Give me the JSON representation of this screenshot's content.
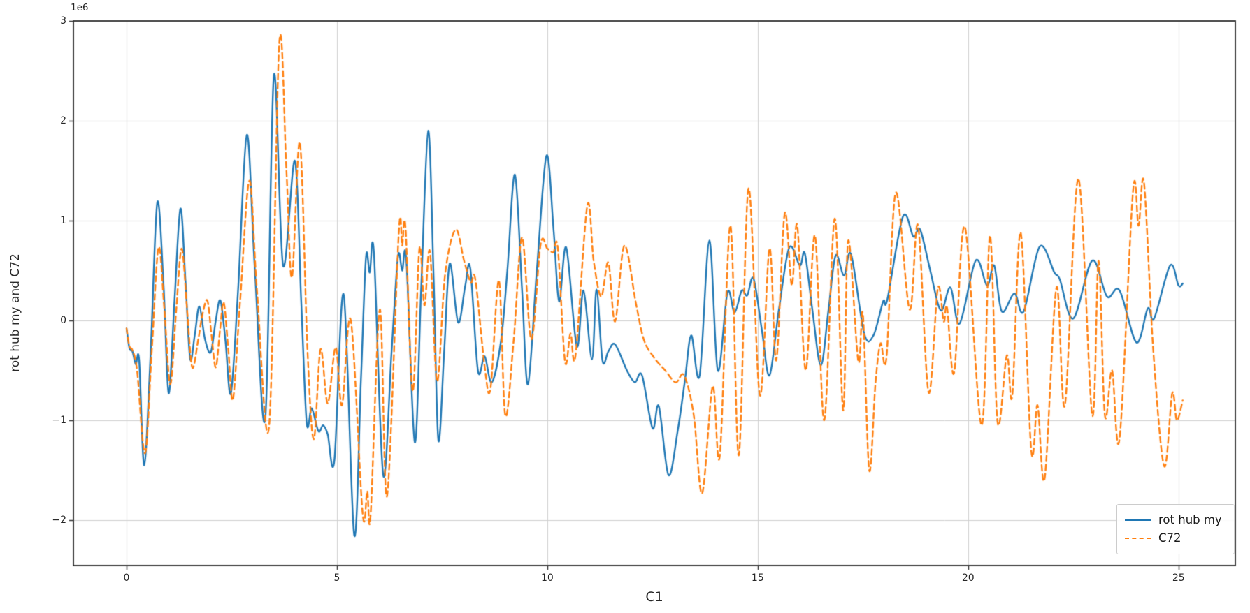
{
  "figure": {
    "y_offset_text": "1e6",
    "background": "#ffffff",
    "grid_color": "#d0d0d0",
    "frame_color": "#2b2b2b",
    "tick_color": "#262626"
  },
  "chart_data": {
    "type": "line",
    "title": "",
    "xlabel": "C1",
    "ylabel": "rot hub my and C72",
    "y_unit_multiplier": 1000000,
    "y_offset_text": "1e6",
    "grid": true,
    "legend_position": "lower right",
    "xlim": [
      -1.263,
      26.35
    ],
    "ylim": [
      -2.455,
      3.0
    ],
    "x_ticks": [
      0,
      5,
      10,
      15,
      20,
      25
    ],
    "x_tick_labels": [
      "0",
      "5",
      "10",
      "15",
      "20",
      "25"
    ],
    "y_ticks": [
      3,
      2,
      1,
      0,
      -1,
      -2
    ],
    "y_tick_labels": [
      "3",
      "2",
      "1",
      "0",
      "−1",
      "−2"
    ],
    "series": [
      {
        "name": "rot hub my",
        "color": "#1f77b4",
        "dash": "solid",
        "points": [
          [
            0.0,
            -0.08
          ],
          [
            0.07,
            -0.28
          ],
          [
            0.14,
            -0.31
          ],
          [
            0.22,
            -0.44
          ],
          [
            0.3,
            -0.4
          ],
          [
            0.42,
            -1.45
          ],
          [
            0.57,
            -0.35
          ],
          [
            0.73,
            1.18
          ],
          [
            0.88,
            0.35
          ],
          [
            1.0,
            -0.73
          ],
          [
            1.14,
            0.2
          ],
          [
            1.28,
            1.12
          ],
          [
            1.4,
            0.4
          ],
          [
            1.51,
            -0.38
          ],
          [
            1.62,
            -0.15
          ],
          [
            1.73,
            0.14
          ],
          [
            1.86,
            -0.18
          ],
          [
            2.0,
            -0.32
          ],
          [
            2.12,
            0.0
          ],
          [
            2.23,
            0.2
          ],
          [
            2.35,
            -0.2
          ],
          [
            2.48,
            -0.73
          ],
          [
            2.65,
            0.3
          ],
          [
            2.86,
            1.86
          ],
          [
            3.05,
            0.5
          ],
          [
            3.3,
            -0.97
          ],
          [
            3.5,
            2.45
          ],
          [
            3.72,
            0.55
          ],
          [
            4.0,
            1.6
          ],
          [
            4.15,
            0.2
          ],
          [
            4.28,
            -1.02
          ],
          [
            4.4,
            -0.88
          ],
          [
            4.56,
            -1.11
          ],
          [
            4.67,
            -1.05
          ],
          [
            4.78,
            -1.14
          ],
          [
            4.94,
            -1.4
          ],
          [
            5.16,
            0.26
          ],
          [
            5.41,
            -2.15
          ],
          [
            5.57,
            -0.6
          ],
          [
            5.69,
            0.63
          ],
          [
            5.78,
            0.48
          ],
          [
            5.88,
            0.67
          ],
          [
            6.1,
            -1.55
          ],
          [
            6.3,
            -0.3
          ],
          [
            6.45,
            0.64
          ],
          [
            6.55,
            0.5
          ],
          [
            6.65,
            0.6
          ],
          [
            6.85,
            -1.22
          ],
          [
            7.0,
            0.3
          ],
          [
            7.17,
            1.9
          ],
          [
            7.3,
            0.4
          ],
          [
            7.41,
            -1.2
          ],
          [
            7.55,
            -0.3
          ],
          [
            7.68,
            0.57
          ],
          [
            7.88,
            -0.02
          ],
          [
            8.05,
            0.35
          ],
          [
            8.17,
            0.52
          ],
          [
            8.35,
            -0.5
          ],
          [
            8.51,
            -0.36
          ],
          [
            8.68,
            -0.62
          ],
          [
            8.9,
            -0.2
          ],
          [
            9.05,
            0.5
          ],
          [
            9.23,
            1.46
          ],
          [
            9.4,
            0.3
          ],
          [
            9.54,
            -0.64
          ],
          [
            9.75,
            0.5
          ],
          [
            9.98,
            1.65
          ],
          [
            10.15,
            0.9
          ],
          [
            10.28,
            0.19
          ],
          [
            10.45,
            0.73
          ],
          [
            10.7,
            -0.26
          ],
          [
            10.86,
            0.3
          ],
          [
            11.06,
            -0.39
          ],
          [
            11.17,
            0.31
          ],
          [
            11.31,
            -0.4
          ],
          [
            11.45,
            -0.31
          ],
          [
            11.61,
            -0.24
          ],
          [
            11.89,
            -0.5
          ],
          [
            12.08,
            -0.62
          ],
          [
            12.25,
            -0.55
          ],
          [
            12.5,
            -1.08
          ],
          [
            12.65,
            -0.86
          ],
          [
            12.88,
            -1.55
          ],
          [
            13.1,
            -1.1
          ],
          [
            13.27,
            -0.6
          ],
          [
            13.42,
            -0.15
          ],
          [
            13.62,
            -0.55
          ],
          [
            13.85,
            0.8
          ],
          [
            14.05,
            -0.5
          ],
          [
            14.28,
            0.28
          ],
          [
            14.45,
            0.08
          ],
          [
            14.62,
            0.3
          ],
          [
            14.75,
            0.25
          ],
          [
            14.9,
            0.42
          ],
          [
            15.1,
            -0.1
          ],
          [
            15.28,
            -0.55
          ],
          [
            15.5,
            0.1
          ],
          [
            15.75,
            0.73
          ],
          [
            16.0,
            0.55
          ],
          [
            16.12,
            0.67
          ],
          [
            16.3,
            0.1
          ],
          [
            16.5,
            -0.45
          ],
          [
            16.68,
            0.1
          ],
          [
            16.85,
            0.65
          ],
          [
            17.05,
            0.45
          ],
          [
            17.22,
            0.66
          ],
          [
            17.53,
            -0.13
          ],
          [
            17.75,
            -0.15
          ],
          [
            17.98,
            0.19
          ],
          [
            18.08,
            0.21
          ],
          [
            18.45,
            1.04
          ],
          [
            18.7,
            0.84
          ],
          [
            18.86,
            0.91
          ],
          [
            19.1,
            0.5
          ],
          [
            19.35,
            0.1
          ],
          [
            19.58,
            0.33
          ],
          [
            19.8,
            -0.03
          ],
          [
            20.18,
            0.6
          ],
          [
            20.45,
            0.35
          ],
          [
            20.62,
            0.55
          ],
          [
            20.8,
            0.09
          ],
          [
            21.1,
            0.27
          ],
          [
            21.32,
            0.09
          ],
          [
            21.7,
            0.74
          ],
          [
            22.05,
            0.48
          ],
          [
            22.18,
            0.41
          ],
          [
            22.5,
            0.02
          ],
          [
            22.95,
            0.6
          ],
          [
            23.3,
            0.24
          ],
          [
            23.6,
            0.3
          ],
          [
            24.0,
            -0.22
          ],
          [
            24.27,
            0.12
          ],
          [
            24.42,
            0.02
          ],
          [
            24.8,
            0.55
          ],
          [
            25.0,
            0.35
          ],
          [
            25.1,
            0.37
          ]
        ]
      },
      {
        "name": "C72",
        "color": "#ff7f0e",
        "dash": "dashed",
        "points": [
          [
            0.0,
            -0.08
          ],
          [
            0.07,
            -0.26
          ],
          [
            0.14,
            -0.3
          ],
          [
            0.25,
            -0.5
          ],
          [
            0.44,
            -1.33
          ],
          [
            0.6,
            -0.3
          ],
          [
            0.76,
            0.73
          ],
          [
            0.9,
            0.1
          ],
          [
            1.04,
            -0.64
          ],
          [
            1.18,
            0.1
          ],
          [
            1.31,
            0.72
          ],
          [
            1.44,
            0.1
          ],
          [
            1.56,
            -0.47
          ],
          [
            1.7,
            -0.2
          ],
          [
            1.8,
            0.05
          ],
          [
            1.92,
            0.2
          ],
          [
            2.02,
            -0.15
          ],
          [
            2.12,
            -0.47
          ],
          [
            2.22,
            -0.1
          ],
          [
            2.31,
            0.18
          ],
          [
            2.42,
            -0.3
          ],
          [
            2.53,
            -0.79
          ],
          [
            2.7,
            0.2
          ],
          [
            2.92,
            1.4
          ],
          [
            3.1,
            0.3
          ],
          [
            3.39,
            -1.05
          ],
          [
            3.63,
            2.78
          ],
          [
            3.8,
            1.5
          ],
          [
            3.93,
            0.43
          ],
          [
            4.12,
            1.78
          ],
          [
            4.3,
            -0.3
          ],
          [
            4.45,
            -1.19
          ],
          [
            4.61,
            -0.29
          ],
          [
            4.78,
            -0.83
          ],
          [
            4.97,
            -0.27
          ],
          [
            5.12,
            -0.85
          ],
          [
            5.33,
            0.0
          ],
          [
            5.61,
            -1.93
          ],
          [
            5.72,
            -1.71
          ],
          [
            5.8,
            -1.95
          ],
          [
            6.02,
            0.11
          ],
          [
            6.19,
            -1.76
          ],
          [
            6.47,
            0.88
          ],
          [
            6.55,
            0.75
          ],
          [
            6.63,
            0.93
          ],
          [
            6.8,
            -0.71
          ],
          [
            6.96,
            0.72
          ],
          [
            7.08,
            0.15
          ],
          [
            7.21,
            0.69
          ],
          [
            7.38,
            -0.61
          ],
          [
            7.57,
            0.46
          ],
          [
            7.82,
            0.91
          ],
          [
            8.02,
            0.6
          ],
          [
            8.18,
            0.38
          ],
          [
            8.29,
            0.41
          ],
          [
            8.51,
            -0.46
          ],
          [
            8.65,
            -0.68
          ],
          [
            8.85,
            0.4
          ],
          [
            9.0,
            -0.95
          ],
          [
            9.2,
            -0.2
          ],
          [
            9.4,
            0.83
          ],
          [
            9.62,
            -0.19
          ],
          [
            9.84,
            0.76
          ],
          [
            10.0,
            0.72
          ],
          [
            10.14,
            0.68
          ],
          [
            10.25,
            0.72
          ],
          [
            10.42,
            -0.41
          ],
          [
            10.55,
            -0.13
          ],
          [
            10.67,
            -0.35
          ],
          [
            10.95,
            1.15
          ],
          [
            11.1,
            0.6
          ],
          [
            11.28,
            0.24
          ],
          [
            11.45,
            0.58
          ],
          [
            11.61,
            -0.01
          ],
          [
            11.83,
            0.75
          ],
          [
            12.11,
            0.16
          ],
          [
            12.3,
            -0.2
          ],
          [
            12.55,
            -0.38
          ],
          [
            12.8,
            -0.5
          ],
          [
            13.05,
            -0.62
          ],
          [
            13.25,
            -0.55
          ],
          [
            13.48,
            -0.95
          ],
          [
            13.68,
            -1.73
          ],
          [
            13.93,
            -0.66
          ],
          [
            14.1,
            -1.35
          ],
          [
            14.35,
            0.95
          ],
          [
            14.55,
            -1.35
          ],
          [
            14.78,
            1.32
          ],
          [
            15.05,
            -0.75
          ],
          [
            15.28,
            0.72
          ],
          [
            15.44,
            -0.4
          ],
          [
            15.64,
            1.07
          ],
          [
            15.81,
            0.35
          ],
          [
            15.94,
            0.95
          ],
          [
            16.14,
            -0.5
          ],
          [
            16.36,
            0.85
          ],
          [
            16.58,
            -1.0
          ],
          [
            16.83,
            1.02
          ],
          [
            17.03,
            -0.9
          ],
          [
            17.15,
            0.8
          ],
          [
            17.39,
            -0.41
          ],
          [
            17.5,
            0.06
          ],
          [
            17.65,
            -1.5
          ],
          [
            17.8,
            -0.62
          ],
          [
            17.92,
            -0.23
          ],
          [
            18.06,
            -0.37
          ],
          [
            18.28,
            1.28
          ],
          [
            18.61,
            0.11
          ],
          [
            18.81,
            0.95
          ],
          [
            19.06,
            -0.72
          ],
          [
            19.28,
            0.32
          ],
          [
            19.42,
            -0.01
          ],
          [
            19.5,
            0.13
          ],
          [
            19.67,
            -0.52
          ],
          [
            19.92,
            0.94
          ],
          [
            20.32,
            -1.05
          ],
          [
            20.52,
            0.85
          ],
          [
            20.7,
            -1.02
          ],
          [
            20.92,
            -0.35
          ],
          [
            21.05,
            -0.75
          ],
          [
            21.25,
            0.88
          ],
          [
            21.5,
            -1.3
          ],
          [
            21.65,
            -0.85
          ],
          [
            21.82,
            -1.58
          ],
          [
            22.1,
            0.33
          ],
          [
            22.3,
            -0.85
          ],
          [
            22.62,
            1.42
          ],
          [
            22.95,
            -0.95
          ],
          [
            23.1,
            0.6
          ],
          [
            23.25,
            -0.95
          ],
          [
            23.42,
            -0.5
          ],
          [
            23.6,
            -1.18
          ],
          [
            23.92,
            1.3
          ],
          [
            24.05,
            0.95
          ],
          [
            24.18,
            1.38
          ],
          [
            24.4,
            -0.3
          ],
          [
            24.66,
            -1.46
          ],
          [
            24.85,
            -0.73
          ],
          [
            24.96,
            -1.0
          ],
          [
            25.1,
            -0.8
          ]
        ]
      }
    ]
  },
  "legend": {
    "items": [
      {
        "label": "rot hub my",
        "color": "#1f77b4",
        "style": "solid"
      },
      {
        "label": "C72",
        "color": "#ff7f0e",
        "style": "dashed"
      }
    ]
  }
}
